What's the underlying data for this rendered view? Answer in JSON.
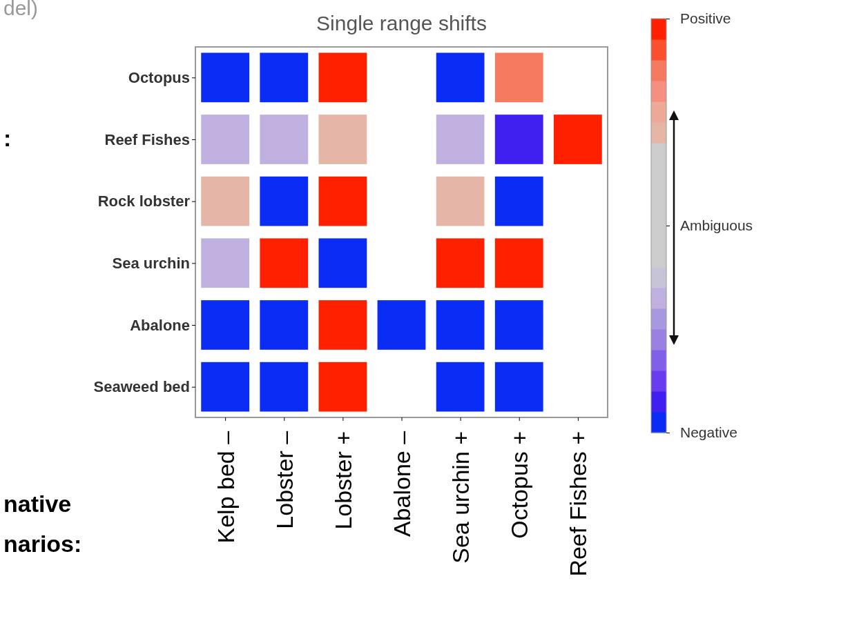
{
  "chart_data": {
    "type": "heatmap",
    "title": "Single range shifts",
    "categories": [
      "Kelp bed –",
      "Lobster –",
      "Lobster +",
      "Abalone –",
      "Sea urchin +",
      "Octopus +",
      "Reef Fishes +"
    ],
    "y_categories": [
      "Octopus",
      "Reef Fishes",
      "Rock lobster",
      "Sea urchin",
      "Abalone",
      "Seaweed bed"
    ],
    "cells": [
      [
        -0.95,
        -0.95,
        0.95,
        null,
        -0.95,
        0.75,
        null
      ],
      [
        -0.35,
        -0.35,
        0.45,
        null,
        -0.35,
        -0.8,
        0.95
      ],
      [
        0.45,
        -0.95,
        0.95,
        null,
        0.45,
        -0.95,
        null
      ],
      [
        -0.35,
        0.95,
        -0.95,
        null,
        0.95,
        0.95,
        null
      ],
      [
        -0.95,
        -0.95,
        0.95,
        -0.95,
        -0.95,
        -0.95,
        null
      ],
      [
        -0.95,
        -0.95,
        0.95,
        null,
        -0.95,
        -0.95,
        null
      ]
    ],
    "clim": [
      -1,
      1
    ],
    "cticks": [
      {
        "value": 1,
        "label": "Positive"
      },
      {
        "value": 0,
        "label": "Ambiguous"
      },
      {
        "value": -1,
        "label": "Negative"
      }
    ],
    "annotations": [
      "del)",
      ":",
      "native",
      "narios:"
    ]
  }
}
